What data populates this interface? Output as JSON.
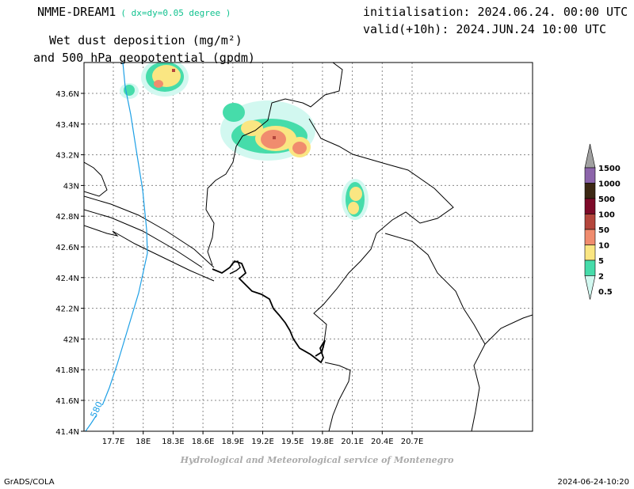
{
  "header": {
    "model": "NMME-DREAM1",
    "resolution": "( dx=dy=0.05 degree )",
    "init": "initialisation: 2024.06.24. 00:00 UTC",
    "valid": "valid(+10h): 2024.JUN.24 10:00 UTC",
    "variable_line1": "Wet dust deposition (mg/m²)",
    "variable_line2": "and 500 hPa geopotential (gpdm)"
  },
  "map": {
    "lon_labels": [
      "17.7E",
      "18E",
      "18.3E",
      "18.6E",
      "18.9E",
      "19.2E",
      "19.5E",
      "19.8E",
      "20.1E",
      "20.4E",
      "20.7E"
    ],
    "lat_labels": [
      "43.6N",
      "43.4N",
      "43.2N",
      "43N",
      "42.8N",
      "42.6N",
      "42.4N",
      "42.2N",
      "42N",
      "41.8N",
      "41.6N",
      "41.4N"
    ],
    "contour_label": "580",
    "contour_color": "#1ea0e6"
  },
  "legend": {
    "levels": [
      "1500",
      "1000",
      "500",
      "100",
      "50",
      "10",
      "5",
      "2",
      "0.5"
    ],
    "colors": [
      "#a0a0a0",
      "#8c64aa",
      "#3c2814",
      "#7d0a28",
      "#b4463c",
      "#f08c6e",
      "#fae682",
      "#46dcaa",
      "#d2f8f0"
    ]
  },
  "footer": {
    "credit": "Hydrological and Meteorological service of Montenegro",
    "software": "GrADS/COLA",
    "timestamp": "2024-06-24-10:20"
  }
}
